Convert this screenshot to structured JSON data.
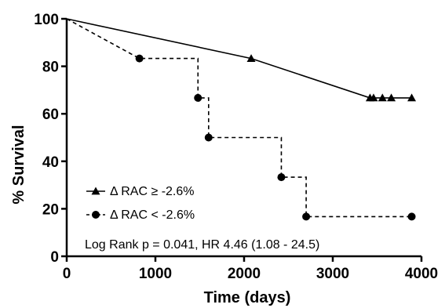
{
  "chart_data": {
    "type": "line",
    "xlabel": "Time (days)",
    "ylabel": "% Survival",
    "xlim": [
      0,
      4000
    ],
    "ylim": [
      0,
      100
    ],
    "xticks": [
      0,
      1000,
      2000,
      3000,
      4000
    ],
    "yticks": [
      0,
      20,
      40,
      60,
      80,
      100
    ],
    "grid": false,
    "legend_position": "bottom-left",
    "series": [
      {
        "name": "Δ RAC ≥ -2.6%",
        "line_style": "solid",
        "marker": "triangle",
        "step": false,
        "points": [
          [
            0,
            100
          ],
          [
            2080,
            83.3
          ],
          [
            3420,
            66.7
          ]
        ],
        "censored": [
          [
            2080,
            83.3
          ],
          [
            3420,
            66.7
          ],
          [
            3460,
            66.7
          ],
          [
            3560,
            66.7
          ],
          [
            3660,
            66.7
          ],
          [
            3890,
            66.7
          ]
        ],
        "end": [
          3890,
          66.7
        ]
      },
      {
        "name": "Δ RAC < -2.6%",
        "line_style": "dashed",
        "marker": "circle",
        "step": true,
        "points": [
          [
            0,
            100
          ],
          [
            820,
            83.3
          ],
          [
            1480,
            66.7
          ],
          [
            1600,
            50
          ],
          [
            2420,
            33.3
          ],
          [
            2700,
            16.7
          ]
        ],
        "censored": [
          [
            820,
            83.3
          ],
          [
            1480,
            66.7
          ],
          [
            1600,
            50
          ],
          [
            2420,
            33.3
          ],
          [
            2700,
            16.7
          ],
          [
            3890,
            16.7
          ]
        ],
        "end": [
          3890,
          16.7
        ]
      }
    ],
    "annotations": [
      "Log Rank p = 0.041, HR 4.46 (1.08 - 24.5)"
    ],
    "colors": {
      "axis": "#000000",
      "series": "#000000"
    }
  }
}
